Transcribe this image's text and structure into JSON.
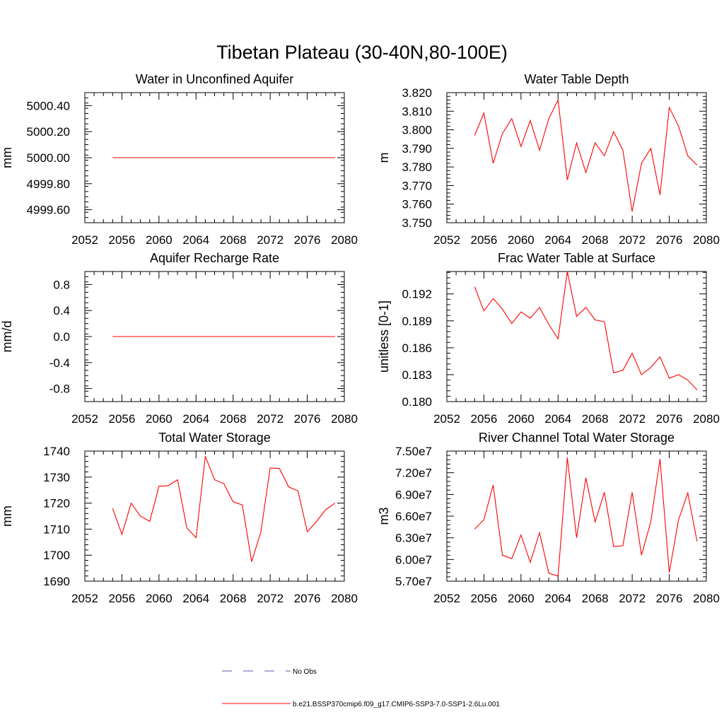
{
  "figure": {
    "title": "Tibetan Plateau (30-40N,80-100E)"
  },
  "colors": {
    "model_line": "#ff0000",
    "obs_line": "#5a5aa8",
    "axes": "#000000"
  },
  "legend": {
    "position": "bottom-center",
    "entries": [
      {
        "label": "No Obs",
        "style": "dashed",
        "color": "#5a5aa8"
      },
      {
        "label": "b.e21.BSSP370cmip6.f09_g17.CMIP6-SSP3-7.0-SSP1-2.6Lu.001",
        "style": "solid",
        "color": "#ff0000"
      }
    ]
  },
  "chart_data": [
    {
      "type": "line",
      "title": "Water in Unconfined Aquifer",
      "xlabel": "",
      "ylabel": "mm",
      "xlim": [
        2052,
        2080
      ],
      "ylim": [
        4999.5,
        5000.5
      ],
      "xticks": [
        2052,
        2056,
        2060,
        2064,
        2068,
        2072,
        2076,
        2080
      ],
      "xtick_labels": [
        "2052",
        "2056",
        "2060",
        "2064",
        "2068",
        "2072",
        "2076",
        "2080"
      ],
      "yticks": [
        4999.6,
        4999.8,
        5000.0,
        5000.2,
        5000.4
      ],
      "ytick_labels": [
        "4999.60",
        "4999.80",
        "5000.00",
        "5000.20",
        "5000.40"
      ],
      "x": [
        2055,
        2056,
        2057,
        2058,
        2059,
        2060,
        2061,
        2062,
        2063,
        2064,
        2065,
        2066,
        2067,
        2068,
        2069,
        2070,
        2071,
        2072,
        2073,
        2074,
        2075,
        2076,
        2077,
        2078,
        2079
      ],
      "series": [
        {
          "values": [
            5000,
            5000,
            5000,
            5000,
            5000,
            5000,
            5000,
            5000,
            5000,
            5000,
            5000,
            5000,
            5000,
            5000,
            5000,
            5000,
            5000,
            5000,
            5000,
            5000,
            5000,
            5000,
            5000,
            5000,
            5000
          ]
        }
      ]
    },
    {
      "type": "line",
      "title": "Water Table Depth",
      "xlabel": "",
      "ylabel": "m",
      "xlim": [
        2052,
        2080
      ],
      "ylim": [
        3.75,
        3.82
      ],
      "xticks": [
        2052,
        2056,
        2060,
        2064,
        2068,
        2072,
        2076,
        2080
      ],
      "xtick_labels": [
        "2052",
        "2056",
        "2060",
        "2064",
        "2068",
        "2072",
        "2076",
        "2080"
      ],
      "yticks": [
        3.75,
        3.76,
        3.77,
        3.78,
        3.79,
        3.8,
        3.81,
        3.82
      ],
      "ytick_labels": [
        "3.750",
        "3.760",
        "3.770",
        "3.780",
        "3.790",
        "3.800",
        "3.810",
        "3.820"
      ],
      "x": [
        2055,
        2056,
        2057,
        2058,
        2059,
        2060,
        2061,
        2062,
        2063,
        2064,
        2065,
        2066,
        2067,
        2068,
        2069,
        2070,
        2071,
        2072,
        2073,
        2074,
        2075,
        2076,
        2077,
        2078,
        2079
      ],
      "series": [
        {
          "values": [
            3.797,
            3.809,
            3.782,
            3.798,
            3.806,
            3.791,
            3.805,
            3.789,
            3.806,
            3.816,
            3.773,
            3.793,
            3.777,
            3.793,
            3.786,
            3.799,
            3.789,
            3.756,
            3.782,
            3.79,
            3.765,
            3.812,
            3.802,
            3.786,
            3.781
          ]
        }
      ]
    },
    {
      "type": "line",
      "title": "Aquifer Recharge Rate",
      "xlabel": "",
      "ylabel": "mm/d",
      "xlim": [
        2052,
        2080
      ],
      "ylim": [
        -1.0,
        1.0
      ],
      "xticks": [
        2052,
        2056,
        2060,
        2064,
        2068,
        2072,
        2076,
        2080
      ],
      "xtick_labels": [
        "2052",
        "2056",
        "2060",
        "2064",
        "2068",
        "2072",
        "2076",
        "2080"
      ],
      "yticks": [
        -0.8,
        -0.4,
        0.0,
        0.4,
        0.8
      ],
      "ytick_labels": [
        "-0.8",
        "-0.4",
        "0.0",
        "0.4",
        "0.8"
      ],
      "x": [
        2055,
        2056,
        2057,
        2058,
        2059,
        2060,
        2061,
        2062,
        2063,
        2064,
        2065,
        2066,
        2067,
        2068,
        2069,
        2070,
        2071,
        2072,
        2073,
        2074,
        2075,
        2076,
        2077,
        2078,
        2079
      ],
      "series": [
        {
          "values": [
            0,
            0,
            0,
            0,
            0,
            0,
            0,
            0,
            0,
            0,
            0,
            0,
            0,
            0,
            0,
            0,
            0,
            0,
            0,
            0,
            0,
            0,
            0,
            0,
            0
          ]
        }
      ]
    },
    {
      "type": "line",
      "title": "Frac Water Table at Surface",
      "xlabel": "",
      "ylabel": "unitless [0-1]",
      "xlim": [
        2052,
        2080
      ],
      "ylim": [
        0.18,
        0.1945
      ],
      "xticks": [
        2052,
        2056,
        2060,
        2064,
        2068,
        2072,
        2076,
        2080
      ],
      "xtick_labels": [
        "2052",
        "2056",
        "2060",
        "2064",
        "2068",
        "2072",
        "2076",
        "2080"
      ],
      "yticks": [
        0.18,
        0.183,
        0.186,
        0.189,
        0.192
      ],
      "ytick_labels": [
        "0.180",
        "0.183",
        "0.186",
        "0.189",
        "0.192"
      ],
      "x": [
        2055,
        2056,
        2057,
        2058,
        2059,
        2060,
        2061,
        2062,
        2063,
        2064,
        2065,
        2066,
        2067,
        2068,
        2069,
        2070,
        2071,
        2072,
        2073,
        2074,
        2075,
        2076,
        2077,
        2078,
        2079
      ],
      "series": [
        {
          "values": [
            0.1928,
            0.1901,
            0.1915,
            0.1903,
            0.1887,
            0.19,
            0.1893,
            0.1905,
            0.1886,
            0.187,
            0.1945,
            0.1895,
            0.1905,
            0.1891,
            0.1889,
            0.1832,
            0.1835,
            0.1854,
            0.183,
            0.1838,
            0.185,
            0.1826,
            0.183,
            0.1824,
            0.1813
          ]
        }
      ]
    },
    {
      "type": "line",
      "title": "Total Water Storage",
      "xlabel": "",
      "ylabel": "mm",
      "xlim": [
        2052,
        2080
      ],
      "ylim": [
        1690,
        1740
      ],
      "xticks": [
        2052,
        2056,
        2060,
        2064,
        2068,
        2072,
        2076,
        2080
      ],
      "xtick_labels": [
        "2052",
        "2056",
        "2060",
        "2064",
        "2068",
        "2072",
        "2076",
        "2080"
      ],
      "yticks": [
        1690,
        1700,
        1710,
        1720,
        1730,
        1740
      ],
      "ytick_labels": [
        "1690",
        "1700",
        "1710",
        "1720",
        "1730",
        "1740"
      ],
      "x": [
        2055,
        2056,
        2057,
        2058,
        2059,
        2060,
        2061,
        2062,
        2063,
        2064,
        2065,
        2066,
        2067,
        2068,
        2069,
        2070,
        2071,
        2072,
        2073,
        2074,
        2075,
        2076,
        2077,
        2078,
        2079
      ],
      "series": [
        {
          "values": [
            1718,
            1708,
            1720,
            1715,
            1713,
            1726.5,
            1726.7,
            1729,
            1710.5,
            1706.7,
            1738,
            1729,
            1727.5,
            1720.5,
            1719.3,
            1697.5,
            1709,
            1733.5,
            1733.3,
            1726.2,
            1724.7,
            1709,
            1713,
            1717.5,
            1720
          ]
        }
      ]
    },
    {
      "type": "line",
      "title": "River Channel Total Water Storage",
      "xlabel": "",
      "ylabel": "m3",
      "xlim": [
        2052,
        2080
      ],
      "ylim": [
        57000000,
        75000000
      ],
      "xticks": [
        2052,
        2056,
        2060,
        2064,
        2068,
        2072,
        2076,
        2080
      ],
      "xtick_labels": [
        "2052",
        "2056",
        "2060",
        "2064",
        "2068",
        "2072",
        "2076",
        "2080"
      ],
      "yticks": [
        57000000,
        60000000,
        63000000,
        66000000,
        69000000,
        72000000,
        75000000
      ],
      "ytick_labels": [
        "5.70e7",
        "6.00e7",
        "6.30e7",
        "6.60e7",
        "6.90e7",
        "7.20e7",
        "7.50e7"
      ],
      "x": [
        2055,
        2056,
        2057,
        2058,
        2059,
        2060,
        2061,
        2062,
        2063,
        2064,
        2065,
        2066,
        2067,
        2068,
        2069,
        2070,
        2071,
        2072,
        2073,
        2074,
        2075,
        2076,
        2077,
        2078,
        2079
      ],
      "series": [
        {
          "values": [
            64200000,
            65500000,
            70300000,
            60600000,
            60100000,
            63400000,
            59600000,
            63700000,
            58100000,
            57700000,
            74100000,
            63000000,
            71300000,
            65200000,
            69300000,
            61800000,
            61900000,
            69300000,
            60600000,
            65200000,
            73900000,
            58200000,
            65500000,
            69200000,
            62500000
          ]
        }
      ]
    }
  ]
}
